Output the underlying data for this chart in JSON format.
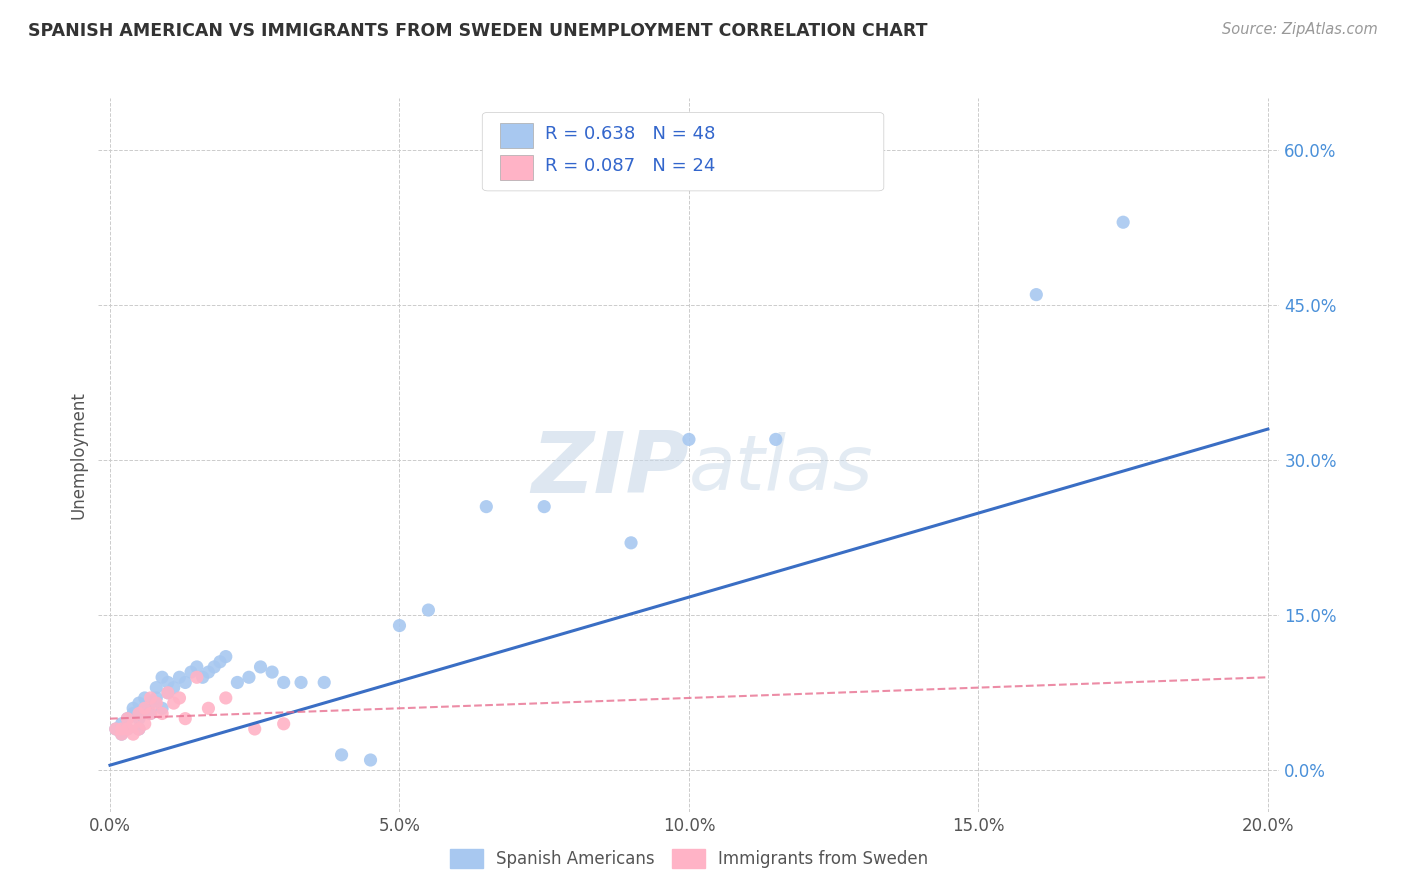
{
  "title": "SPANISH AMERICAN VS IMMIGRANTS FROM SWEDEN UNEMPLOYMENT CORRELATION CHART",
  "source": "Source: ZipAtlas.com",
  "ylabel": "Unemployment",
  "xlabel_ticks": [
    "0.0%",
    "5.0%",
    "10.0%",
    "15.0%",
    "20.0%"
  ],
  "xlabel_vals": [
    0.0,
    0.05,
    0.1,
    0.15,
    0.2
  ],
  "ylabel_ticks": [
    "0.0%",
    "15.0%",
    "30.0%",
    "45.0%",
    "60.0%"
  ],
  "ylabel_vals": [
    0.0,
    0.15,
    0.3,
    0.45,
    0.6
  ],
  "series1_color": "#a8c8f0",
  "series2_color": "#ffb3c6",
  "series1_label": "Spanish Americans",
  "series2_label": "Immigrants from Sweden",
  "R1": 0.638,
  "N1": 48,
  "R2": 0.087,
  "N2": 24,
  "line1_color": "#3a6ec4",
  "line2_color": "#e87090",
  "watermark_zip": "ZIP",
  "watermark_atlas": "atlas",
  "series1_x": [
    0.001,
    0.002,
    0.002,
    0.003,
    0.003,
    0.004,
    0.004,
    0.005,
    0.005,
    0.005,
    0.006,
    0.006,
    0.007,
    0.007,
    0.008,
    0.008,
    0.009,
    0.009,
    0.01,
    0.01,
    0.011,
    0.012,
    0.013,
    0.014,
    0.015,
    0.016,
    0.017,
    0.018,
    0.019,
    0.02,
    0.022,
    0.024,
    0.026,
    0.028,
    0.03,
    0.033,
    0.037,
    0.04,
    0.045,
    0.05,
    0.055,
    0.065,
    0.075,
    0.09,
    0.1,
    0.115,
    0.16,
    0.175
  ],
  "series1_y": [
    0.04,
    0.045,
    0.035,
    0.05,
    0.04,
    0.06,
    0.055,
    0.065,
    0.05,
    0.04,
    0.07,
    0.06,
    0.055,
    0.065,
    0.08,
    0.07,
    0.09,
    0.06,
    0.075,
    0.085,
    0.08,
    0.09,
    0.085,
    0.095,
    0.1,
    0.09,
    0.095,
    0.1,
    0.105,
    0.11,
    0.085,
    0.09,
    0.1,
    0.095,
    0.085,
    0.085,
    0.085,
    0.015,
    0.01,
    0.14,
    0.155,
    0.255,
    0.255,
    0.22,
    0.32,
    0.32,
    0.46,
    0.53
  ],
  "series2_x": [
    0.001,
    0.002,
    0.002,
    0.003,
    0.003,
    0.004,
    0.004,
    0.005,
    0.005,
    0.006,
    0.006,
    0.007,
    0.007,
    0.008,
    0.009,
    0.01,
    0.011,
    0.012,
    0.013,
    0.015,
    0.017,
    0.02,
    0.025,
    0.03
  ],
  "series2_y": [
    0.04,
    0.04,
    0.035,
    0.05,
    0.04,
    0.045,
    0.035,
    0.055,
    0.04,
    0.06,
    0.045,
    0.07,
    0.055,
    0.065,
    0.055,
    0.075,
    0.065,
    0.07,
    0.05,
    0.09,
    0.06,
    0.07,
    0.04,
    0.045
  ]
}
